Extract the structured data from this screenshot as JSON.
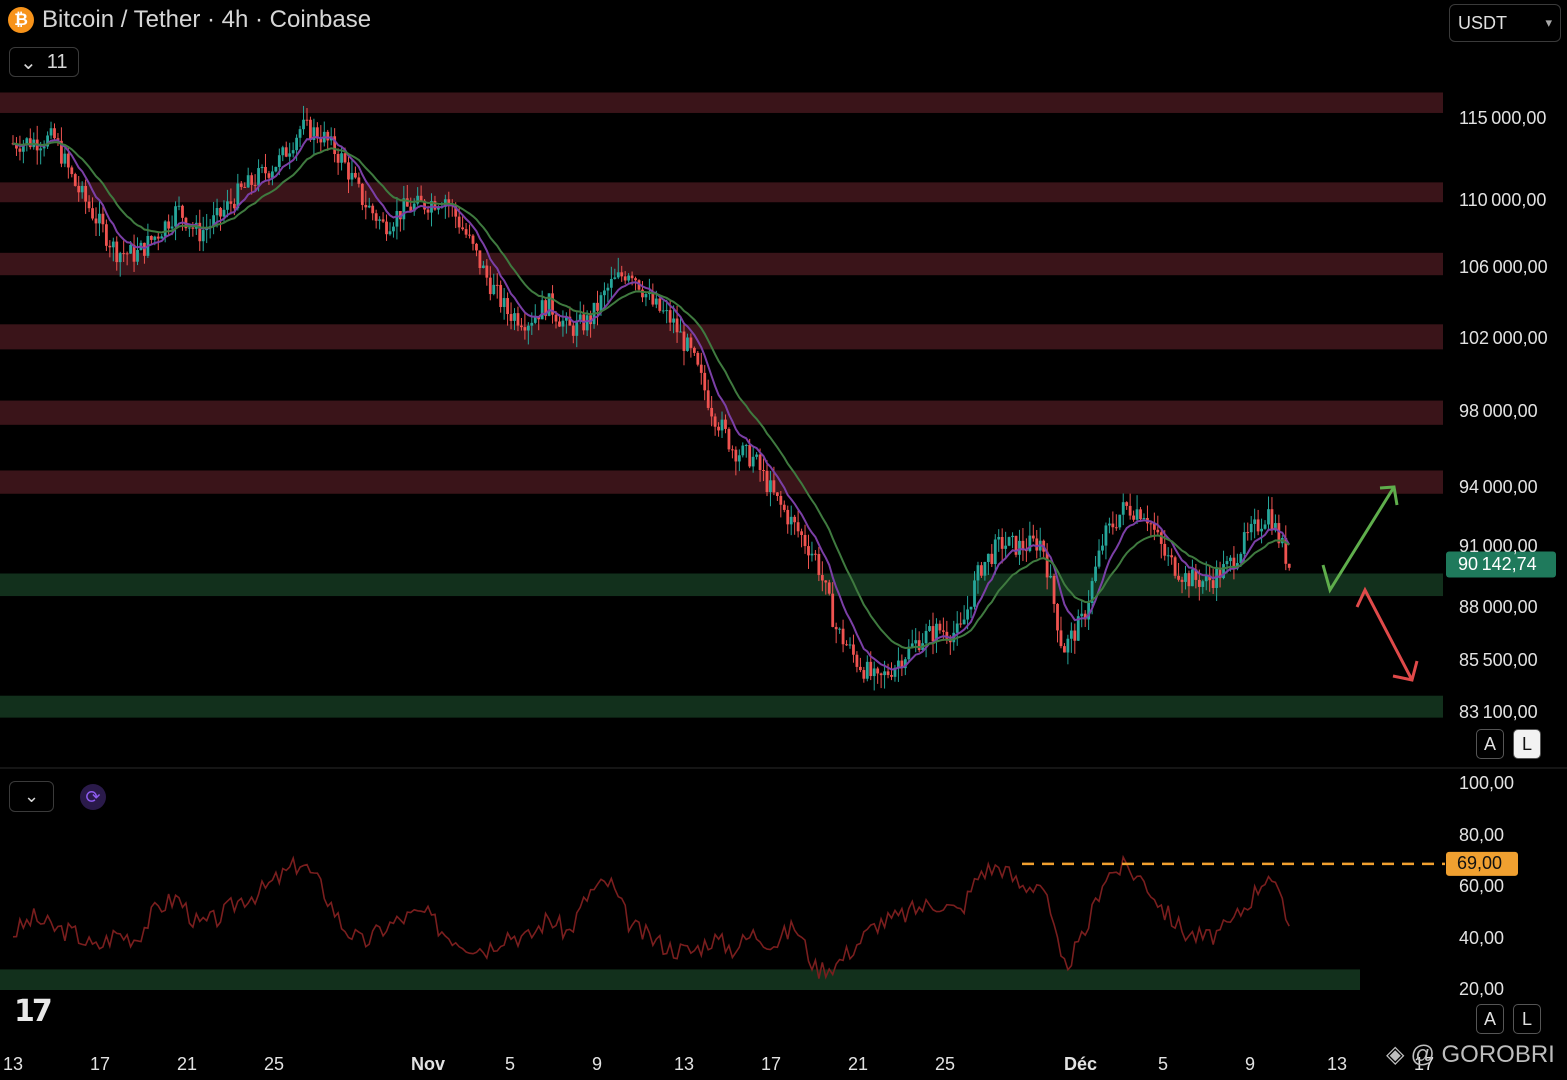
{
  "header": {
    "title": "Bitcoin / Tether · 4h · Coinbase",
    "indicators_toggle_count": "11",
    "currency": "USDT"
  },
  "colors": {
    "resistance_zone": "#3a1419",
    "support_zone": "#12301c",
    "candle_up": "#26a69a",
    "candle_down": "#ef5350",
    "ema_fast": "#7b3fa6",
    "ema_slow": "#3f7a3f",
    "rsi_line": "#7a1e1e",
    "rsi_level": "#f0a030",
    "last_price_bg": "#1f7a5c",
    "arrow_up": "#5fae4c",
    "arrow_down": "#e04a4a"
  },
  "price_axis": {
    "labels": [
      "115 000,00",
      "110 000,00",
      "106 000,00",
      "102 000,00",
      "98 000,00",
      "94 000,00",
      "91 000,00",
      "88 000,00",
      "85 500,00",
      "83 100,00"
    ],
    "last_price_label": "90 142,74"
  },
  "rsi_axis": {
    "labels": [
      "100,00",
      "80,00",
      "60,00",
      "40,00",
      "20,00"
    ],
    "level_label": "69,00"
  },
  "time_axis": {
    "labels": [
      "13",
      "17",
      "21",
      "25",
      "Nov",
      "5",
      "9",
      "13",
      "17",
      "21",
      "25",
      "Déc",
      "5",
      "9",
      "13",
      "17"
    ]
  },
  "scale_buttons": {
    "auto": "A",
    "log": "L"
  },
  "watermark": "@ GOROBRI",
  "logo": "TV",
  "chart_data": {
    "type": "candlestick",
    "title": "Bitcoin / Tether · 4h · Coinbase",
    "timeframe": "4h",
    "x_start": "Oct 13",
    "x_end": "Dec 11",
    "last_price": 90142.74,
    "price_range": [
      81000,
      117500
    ],
    "resistance_zones": [
      [
        115400,
        116700
      ],
      [
        109900,
        111100
      ],
      [
        105600,
        106900
      ],
      [
        101400,
        102800
      ],
      [
        97300,
        98600
      ],
      [
        93700,
        94900
      ]
    ],
    "support_zones": [
      [
        88600,
        89700
      ],
      [
        82900,
        83900
      ]
    ],
    "price_path": [
      [
        13,
        113500
      ],
      [
        15,
        113800
      ],
      [
        16,
        111000
      ],
      [
        17,
        109000
      ],
      [
        18,
        107000
      ],
      [
        19,
        106800
      ],
      [
        20,
        108000
      ],
      [
        21,
        109500
      ],
      [
        22,
        108000
      ],
      [
        23,
        109000
      ],
      [
        24,
        110500
      ],
      [
        25,
        111500
      ],
      [
        26,
        112500
      ],
      [
        27,
        114500
      ],
      [
        28,
        114000
      ],
      [
        29,
        112500
      ],
      [
        30,
        110000
      ],
      [
        31,
        108500
      ],
      [
        32,
        109500
      ],
      [
        33,
        109800
      ],
      [
        34,
        110200
      ],
      [
        35,
        108000
      ],
      [
        36,
        105500
      ],
      [
        37,
        103500
      ],
      [
        38,
        103000
      ],
      [
        39,
        104000
      ],
      [
        40,
        102500
      ],
      [
        41,
        103000
      ],
      [
        42,
        105000
      ],
      [
        43,
        106000
      ],
      [
        44,
        104000
      ],
      [
        45,
        103000
      ],
      [
        46,
        101000
      ],
      [
        47,
        98000
      ],
      [
        48,
        96000
      ],
      [
        49,
        95500
      ],
      [
        50,
        93500
      ],
      [
        51,
        92000
      ],
      [
        52,
        90500
      ],
      [
        53,
        87000
      ],
      [
        54,
        85500
      ],
      [
        55,
        84500
      ],
      [
        56,
        85500
      ],
      [
        57,
        86500
      ],
      [
        58,
        87000
      ],
      [
        59,
        86800
      ],
      [
        60,
        90000
      ],
      [
        61,
        91200
      ],
      [
        62,
        91000
      ],
      [
        63,
        91300
      ],
      [
        64,
        86000
      ],
      [
        65,
        87500
      ],
      [
        66,
        91500
      ],
      [
        67,
        93000
      ],
      [
        68,
        92800
      ],
      [
        69,
        90500
      ],
      [
        70,
        89500
      ],
      [
        71,
        89300
      ],
      [
        72,
        90000
      ],
      [
        73,
        91500
      ],
      [
        74,
        92800
      ],
      [
        75,
        90100
      ]
    ],
    "rsi_path": [
      [
        13,
        42
      ],
      [
        14,
        48
      ],
      [
        15,
        44
      ],
      [
        16,
        42
      ],
      [
        17,
        36
      ],
      [
        18,
        42
      ],
      [
        19,
        40
      ],
      [
        20,
        52
      ],
      [
        21,
        56
      ],
      [
        22,
        45
      ],
      [
        23,
        48
      ],
      [
        24,
        55
      ],
      [
        25,
        58
      ],
      [
        26,
        64
      ],
      [
        27,
        70
      ],
      [
        28,
        60
      ],
      [
        29,
        45
      ],
      [
        30,
        38
      ],
      [
        31,
        44
      ],
      [
        32,
        48
      ],
      [
        33,
        50
      ],
      [
        34,
        42
      ],
      [
        35,
        38
      ],
      [
        36,
        36
      ],
      [
        37,
        42
      ],
      [
        38,
        40
      ],
      [
        39,
        48
      ],
      [
        40,
        42
      ],
      [
        41,
        58
      ],
      [
        42,
        62
      ],
      [
        43,
        45
      ],
      [
        44,
        40
      ],
      [
        45,
        36
      ],
      [
        46,
        35
      ],
      [
        47,
        40
      ],
      [
        48,
        36
      ],
      [
        49,
        42
      ],
      [
        50,
        38
      ],
      [
        51,
        45
      ],
      [
        52,
        28
      ],
      [
        53,
        30
      ],
      [
        54,
        38
      ],
      [
        55,
        46
      ],
      [
        56,
        48
      ],
      [
        57,
        52
      ],
      [
        58,
        54
      ],
      [
        59,
        50
      ],
      [
        60,
        66
      ],
      [
        61,
        68
      ],
      [
        62,
        60
      ],
      [
        63,
        62
      ],
      [
        64,
        28
      ],
      [
        65,
        40
      ],
      [
        66,
        64
      ],
      [
        67,
        68
      ],
      [
        68,
        62
      ],
      [
        69,
        50
      ],
      [
        70,
        42
      ],
      [
        71,
        40
      ],
      [
        72,
        44
      ],
      [
        73,
        54
      ],
      [
        74,
        66
      ],
      [
        75,
        45
      ]
    ],
    "rsi_range": [
      20,
      100
    ],
    "rsi_level": 69,
    "annotations": [
      "up-arrow",
      "down-arrow"
    ]
  }
}
